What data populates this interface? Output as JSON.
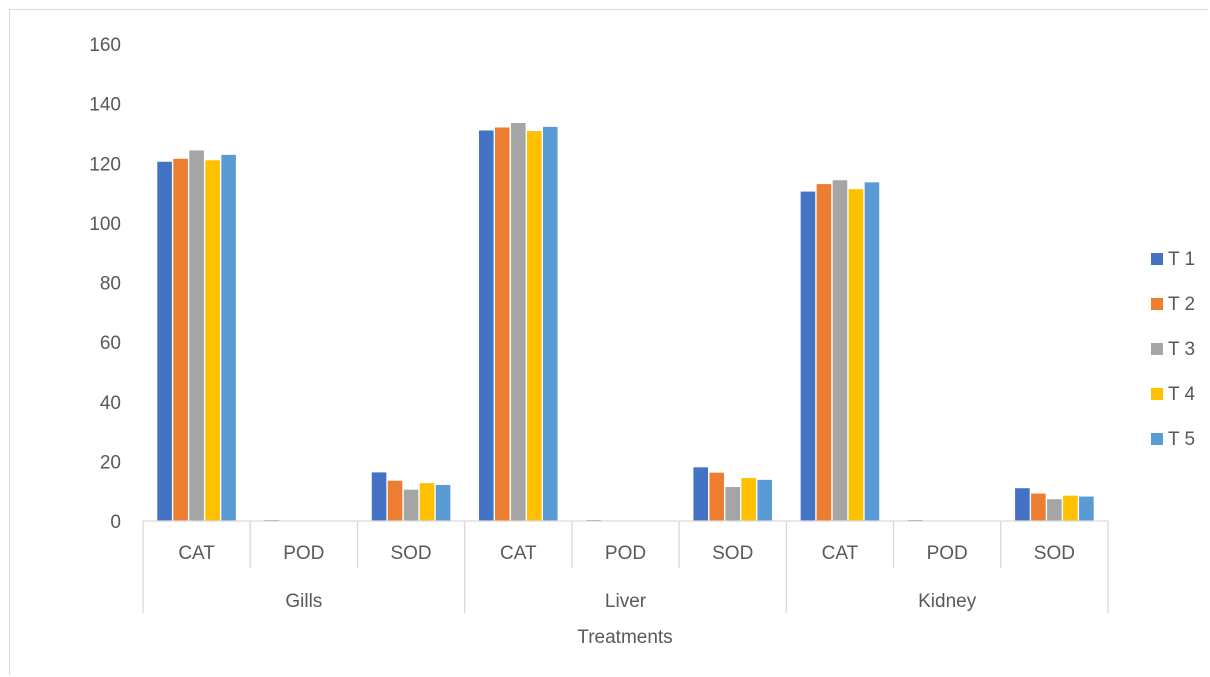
{
  "chart_data": {
    "type": "bar",
    "xlabel": "Treatments",
    "ylabel": "",
    "ylim": [
      0,
      160
    ],
    "yticks": [
      0,
      20,
      40,
      60,
      80,
      100,
      120,
      140,
      160
    ],
    "grid": false,
    "legend_position": "right",
    "groups": [
      {
        "name": "Gills",
        "categories": [
          "CAT",
          "POD",
          "SOD"
        ]
      },
      {
        "name": "Liver",
        "categories": [
          "CAT",
          "POD",
          "SOD"
        ]
      },
      {
        "name": "Kidney",
        "categories": [
          "CAT",
          "POD",
          "SOD"
        ]
      }
    ],
    "categories": [
      "Gills CAT",
      "Gills POD",
      "Gills SOD",
      "Liver CAT",
      "Liver POD",
      "Liver SOD",
      "Kidney CAT",
      "Kidney POD",
      "Kidney SOD"
    ],
    "series": [
      {
        "name": "T 1",
        "color": "#4472c4",
        "values": [
          120.5,
          0.3,
          16.3,
          131.0,
          0.3,
          18.0,
          110.5,
          0.3,
          11.0
        ]
      },
      {
        "name": "T 2",
        "color": "#ed7d31",
        "values": [
          121.5,
          0.1,
          13.5,
          132.0,
          0.1,
          16.2,
          113.0,
          0.1,
          9.2
        ]
      },
      {
        "name": "T 3",
        "color": "#a5a5a5",
        "values": [
          124.3,
          0.1,
          10.5,
          133.5,
          0.1,
          11.4,
          114.3,
          0.1,
          7.3
        ]
      },
      {
        "name": "T 4",
        "color": "#ffc000",
        "values": [
          121.0,
          0.1,
          12.7,
          130.8,
          0.1,
          14.4,
          111.3,
          0.1,
          8.5
        ]
      },
      {
        "name": "T 5",
        "color": "#5b9bd5",
        "values": [
          122.8,
          0.1,
          12.1,
          132.2,
          0.1,
          13.8,
          113.6,
          0.1,
          8.2
        ]
      }
    ]
  }
}
